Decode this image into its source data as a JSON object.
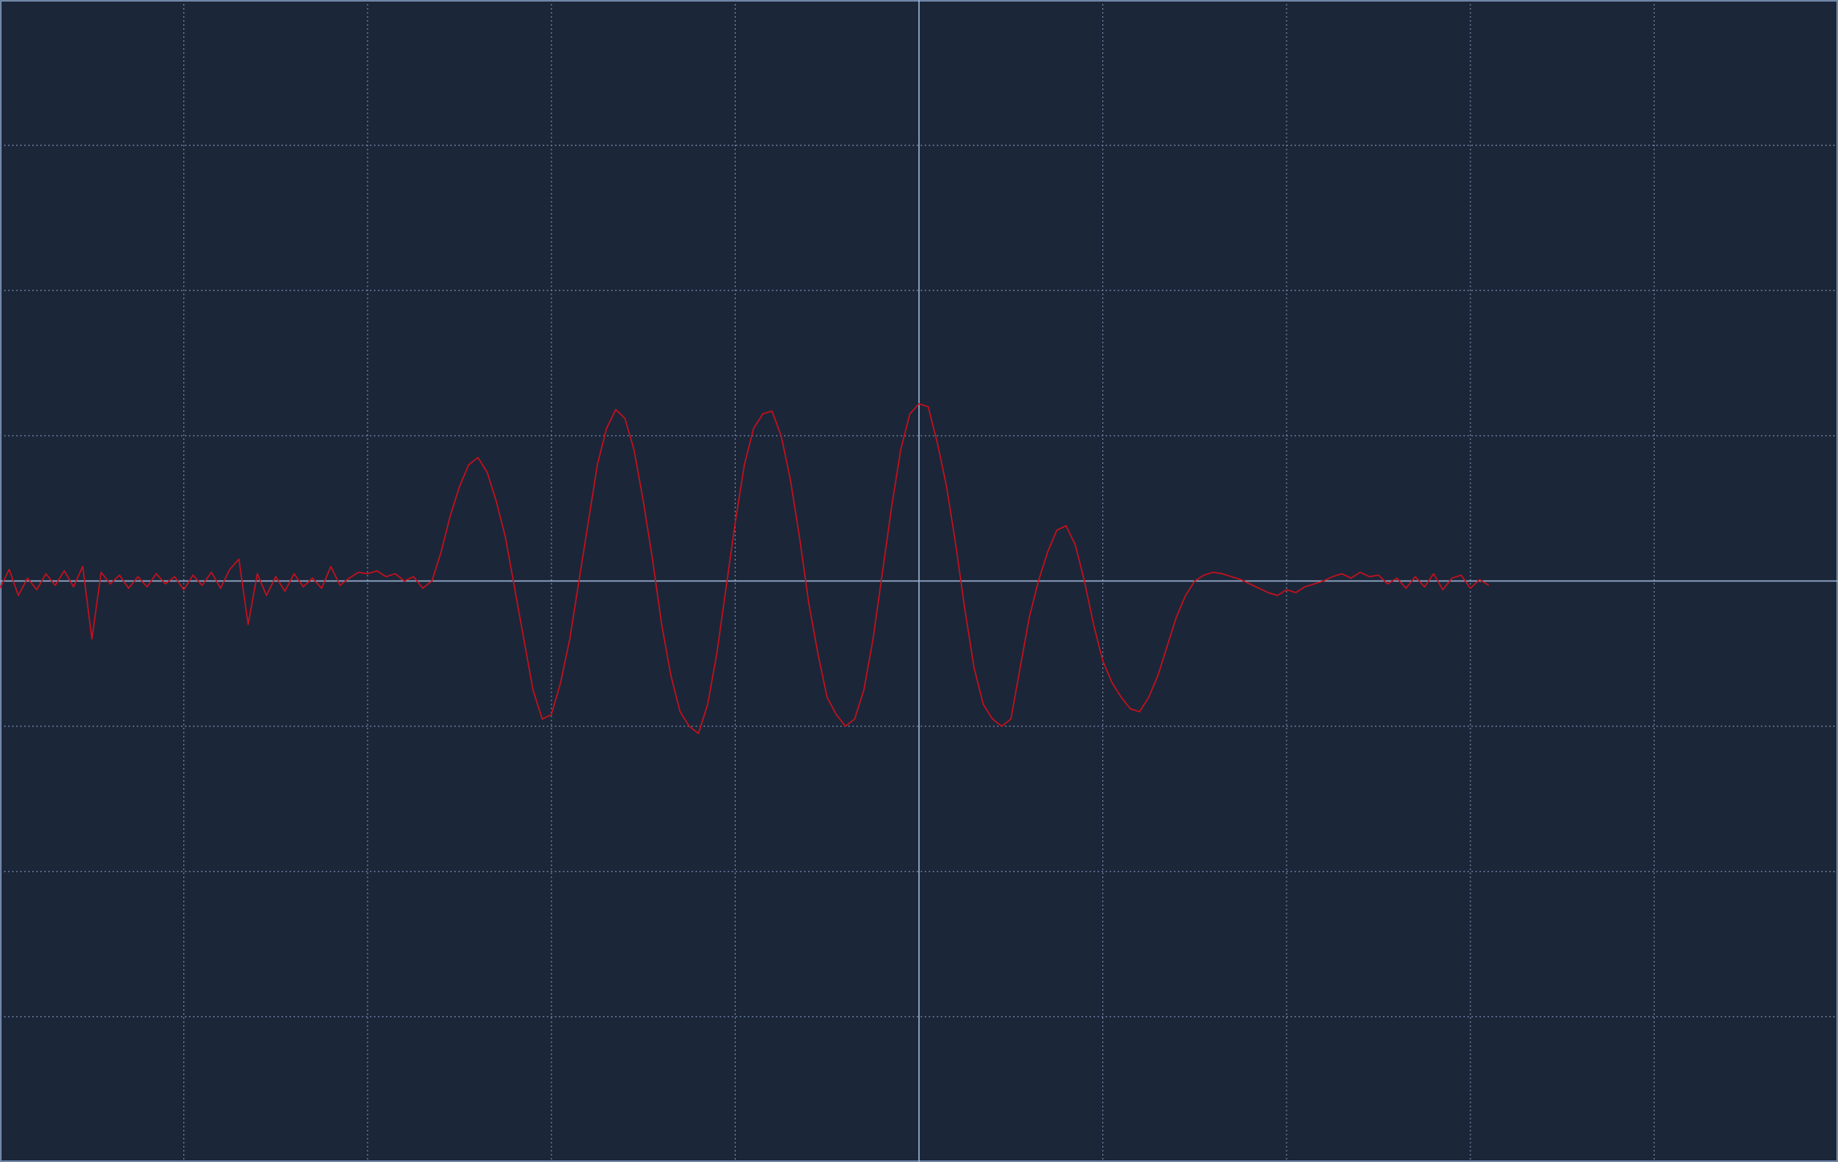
{
  "chart_data": {
    "type": "line",
    "x": [
      -5,
      -4.95,
      -4.9,
      -4.85,
      -4.8,
      -4.75,
      -4.7,
      -4.65,
      -4.6,
      -4.55,
      -4.5,
      -4.45,
      -4.4,
      -4.35,
      -4.3,
      -4.25,
      -4.2,
      -4.15,
      -4.1,
      -4.05,
      -4,
      -3.95,
      -3.9,
      -3.85,
      -3.8,
      -3.75,
      -3.7,
      -3.65,
      -3.6,
      -3.55,
      -3.5,
      -3.45,
      -3.4,
      -3.35,
      -3.3,
      -3.25,
      -3.2,
      -3.15,
      -3.1,
      -3.05,
      -3,
      -2.95,
      -2.9,
      -2.85,
      -2.8,
      -2.75,
      -2.7,
      -2.65,
      -2.6,
      -2.55,
      -2.5,
      -2.45,
      -2.4,
      -2.35,
      -2.3,
      -2.25,
      -2.2,
      -2.15,
      -2.1,
      -2.05,
      -2,
      -1.95,
      -1.9,
      -1.85,
      -1.8,
      -1.75,
      -1.7,
      -1.65,
      -1.6,
      -1.55,
      -1.5,
      -1.45,
      -1.4,
      -1.35,
      -1.3,
      -1.25,
      -1.2,
      -1.15,
      -1.1,
      -1.05,
      -1,
      -0.95,
      -0.9,
      -0.85,
      -0.8,
      -0.75,
      -0.7,
      -0.65,
      -0.6,
      -0.55,
      -0.5,
      -0.45,
      -0.4,
      -0.35,
      -0.3,
      -0.25,
      -0.2,
      -0.15,
      -0.1,
      -0.05,
      0,
      0.05,
      0.1,
      0.15,
      0.2,
      0.25,
      0.3,
      0.35,
      0.4,
      0.45,
      0.5,
      0.55,
      0.6,
      0.65,
      0.7,
      0.75,
      0.8,
      0.85,
      0.9,
      0.95,
      1,
      1.05,
      1.1,
      1.15,
      1.2,
      1.25,
      1.3,
      1.35,
      1.4,
      1.45,
      1.5,
      1.55,
      1.6,
      1.65,
      1.7,
      1.75,
      1.8,
      1.85,
      1.9,
      1.95,
      2,
      2.05,
      2.1,
      2.15,
      2.2,
      2.25,
      2.3,
      2.35,
      2.4,
      2.45,
      2.5,
      2.55,
      2.6,
      2.65,
      2.7,
      2.75,
      2.8,
      2.85,
      2.9,
      2.95,
      3,
      3.05,
      3.1
    ],
    "values": [
      -0.05,
      0.08,
      -0.1,
      0.02,
      -0.06,
      0.05,
      -0.03,
      0.07,
      -0.04,
      0.1,
      -0.4,
      0.06,
      -0.02,
      0.04,
      -0.05,
      0.03,
      -0.04,
      0.05,
      -0.02,
      0.03,
      -0.06,
      0.04,
      -0.03,
      0.06,
      -0.05,
      0.08,
      0.15,
      -0.3,
      0.05,
      -0.1,
      0.03,
      -0.07,
      0.05,
      -0.04,
      0.02,
      -0.05,
      0.1,
      -0.03,
      0.02,
      0.06,
      0.05,
      0.07,
      0.03,
      0.05,
      0,
      0.03,
      -0.05,
      0,
      0.2,
      0.45,
      0.65,
      0.8,
      0.85,
      0.75,
      0.55,
      0.3,
      -0.05,
      -0.4,
      -0.75,
      -0.95,
      -0.92,
      -0.7,
      -0.4,
      0,
      0.4,
      0.8,
      1.05,
      1.18,
      1.12,
      0.9,
      0.55,
      0.15,
      -0.3,
      -0.65,
      -0.9,
      -1,
      -1.05,
      -0.85,
      -0.5,
      -0.05,
      0.4,
      0.8,
      1.05,
      1.15,
      1.17,
      1,
      0.7,
      0.3,
      -0.15,
      -0.5,
      -0.8,
      -0.92,
      -1,
      -0.95,
      -0.75,
      -0.4,
      0.05,
      0.5,
      0.9,
      1.15,
      1.22,
      1.2,
      0.95,
      0.65,
      0.25,
      -0.2,
      -0.6,
      -0.85,
      -0.95,
      -1,
      -0.95,
      -0.6,
      -0.25,
      0,
      0.2,
      0.35,
      0.38,
      0.25,
      0,
      -0.3,
      -0.55,
      -0.7,
      -0.8,
      -0.88,
      -0.9,
      -0.8,
      -0.65,
      -0.45,
      -0.25,
      -0.1,
      0,
      0.04,
      0.06,
      0.05,
      0.03,
      0.01,
      -0.02,
      -0.05,
      -0.08,
      -0.1,
      -0.06,
      -0.08,
      -0.04,
      -0.02,
      0,
      0.03,
      0.05,
      0.02,
      0.06,
      0.03,
      0.04,
      -0.02,
      0.02,
      -0.05,
      0.03,
      -0.04,
      0.05,
      -0.06,
      0.02,
      0.04,
      -0.05,
      0.01,
      -0.03
    ],
    "color": "#c8101c",
    "xlim": [
      -5,
      5
    ],
    "ylim": [
      -4,
      4
    ],
    "xticks": [
      -5,
      -4,
      -3,
      -2,
      -1,
      0,
      1,
      2,
      3,
      4,
      5
    ],
    "yticks": [
      -4,
      -3,
      -2,
      -1,
      0,
      1,
      2,
      3,
      4
    ],
    "grid": true
  }
}
